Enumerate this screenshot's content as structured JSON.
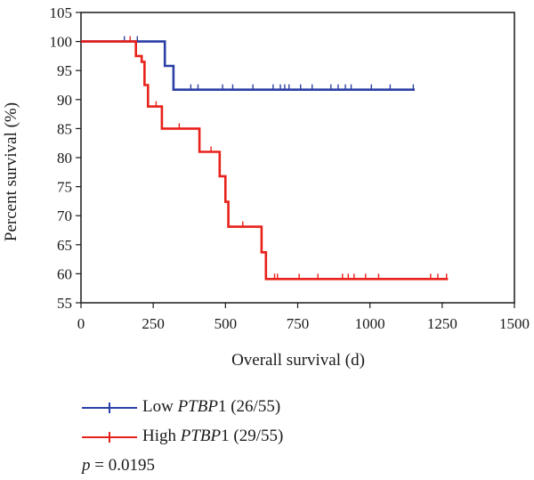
{
  "chart_data": {
    "type": "line",
    "subtype": "kaplan-meier",
    "xlabel": "Overall survival (d)",
    "ylabel": "Percent survival (%)",
    "xlim": [
      0,
      1500
    ],
    "ylim": [
      55,
      105
    ],
    "xticks": [
      0,
      250,
      500,
      750,
      1000,
      1250,
      1500
    ],
    "yticks": [
      55,
      60,
      65,
      70,
      75,
      80,
      85,
      90,
      95,
      100,
      105
    ],
    "grid": false,
    "legend_position": "below",
    "series": [
      {
        "name_prefix": "Low ",
        "name_gene": "PTBP",
        "name_suffix": "1 (26/55)",
        "color": "#2b3fa6",
        "steps": [
          [
            0,
            100
          ],
          [
            290,
            100
          ],
          [
            290,
            95.8
          ],
          [
            320,
            95.8
          ],
          [
            320,
            91.7
          ],
          [
            1155,
            91.7
          ]
        ],
        "censored": [
          [
            150,
            100
          ],
          [
            195,
            100
          ],
          [
            380,
            91.7
          ],
          [
            405,
            91.7
          ],
          [
            490,
            91.7
          ],
          [
            525,
            91.7
          ],
          [
            595,
            91.7
          ],
          [
            665,
            91.7
          ],
          [
            690,
            91.7
          ],
          [
            705,
            91.7
          ],
          [
            720,
            91.7
          ],
          [
            760,
            91.7
          ],
          [
            800,
            91.7
          ],
          [
            865,
            91.7
          ],
          [
            890,
            91.7
          ],
          [
            915,
            91.7
          ],
          [
            935,
            91.7
          ],
          [
            1005,
            91.7
          ],
          [
            1070,
            91.7
          ],
          [
            1150,
            91.7
          ]
        ]
      },
      {
        "name_prefix": "High ",
        "name_gene": "PTBP",
        "name_suffix": "1 (29/55)",
        "color": "#e8211a",
        "steps": [
          [
            0,
            100
          ],
          [
            190,
            100
          ],
          [
            190,
            97.5
          ],
          [
            210,
            97.5
          ],
          [
            210,
            96.5
          ],
          [
            220,
            96.5
          ],
          [
            220,
            92.5
          ],
          [
            232,
            92.5
          ],
          [
            232,
            88.8
          ],
          [
            280,
            88.8
          ],
          [
            280,
            85
          ],
          [
            410,
            85
          ],
          [
            410,
            81
          ],
          [
            480,
            81
          ],
          [
            480,
            76.8
          ],
          [
            500,
            76.8
          ],
          [
            500,
            72.4
          ],
          [
            510,
            72.4
          ],
          [
            510,
            68.1
          ],
          [
            625,
            68.1
          ],
          [
            625,
            63.7
          ],
          [
            640,
            63.7
          ],
          [
            640,
            59.1
          ],
          [
            1270,
            59.1
          ]
        ],
        "censored": [
          [
            170,
            100
          ],
          [
            260,
            88.8
          ],
          [
            340,
            85
          ],
          [
            450,
            81
          ],
          [
            560,
            68.1
          ],
          [
            670,
            59.1
          ],
          [
            680,
            59.1
          ],
          [
            755,
            59.1
          ],
          [
            820,
            59.1
          ],
          [
            905,
            59.1
          ],
          [
            925,
            59.1
          ],
          [
            945,
            59.1
          ],
          [
            985,
            59.1
          ],
          [
            1030,
            59.1
          ],
          [
            1210,
            59.1
          ],
          [
            1235,
            59.1
          ],
          [
            1265,
            59.1
          ]
        ]
      }
    ],
    "p_label": "p",
    "p_value": " = 0.0195"
  }
}
